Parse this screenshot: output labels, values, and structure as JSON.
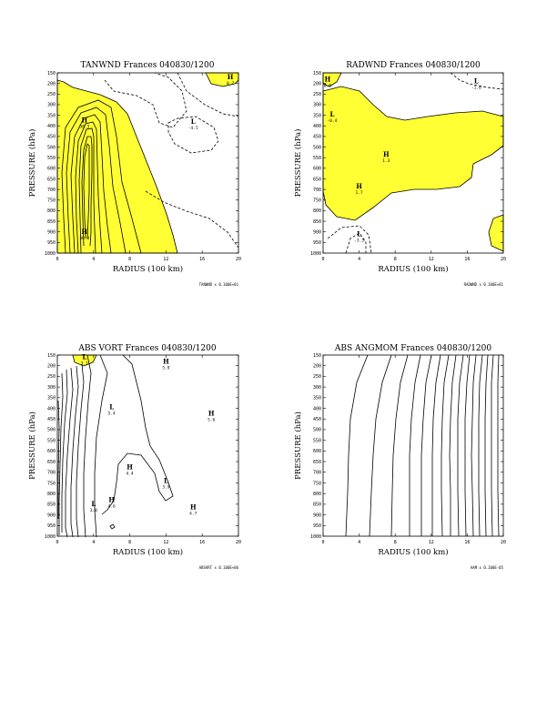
{
  "colors": {
    "positive_fill": "#ffff33",
    "line": "#000000"
  },
  "chart_data": [
    {
      "type": "contour",
      "title": "TANWND Frances 040830/1200",
      "xlabel": "RADIUS (100 km)",
      "ylabel": "PRESSURE (hPa)",
      "xlim": [
        0,
        20
      ],
      "ylim": [
        1000,
        150
      ],
      "grid": false,
      "x_ticks": [
        "0",
        "4",
        "8",
        "12",
        "16",
        "20"
      ],
      "y_ticks": [
        "150",
        "200",
        "250",
        "300",
        "350",
        "400",
        "450",
        "500",
        "550",
        "600",
        "650",
        "700",
        "750",
        "800",
        "850",
        "900",
        "950",
        "1000"
      ],
      "labels": [
        {
          "kind": "H",
          "value": "0.7",
          "r": 19.1,
          "p": 180
        },
        {
          "kind": "H",
          "value": "38.3",
          "r": 3.0,
          "p": 385
        },
        {
          "kind": "L",
          "value": "-4.5",
          "r": 15.0,
          "p": 390
        },
        {
          "kind": "H",
          "value": "38.8",
          "r": 3.0,
          "p": 910
        }
      ],
      "footer": "TANWND x  0.100E+01"
    },
    {
      "type": "contour",
      "title": "RADWND Frances 040830/1200",
      "xlabel": "RADIUS (100 km)",
      "ylabel": "PRESSURE (hPa)",
      "xlim": [
        0,
        20
      ],
      "ylim": [
        1000,
        150
      ],
      "grid": false,
      "x_ticks": [
        "0",
        "4",
        "8",
        "12",
        "16",
        "20"
      ],
      "y_ticks": [
        "150",
        "200",
        "250",
        "300",
        "350",
        "400",
        "450",
        "500",
        "550",
        "600",
        "650",
        "700",
        "750",
        "800",
        "850",
        "900",
        "950",
        "1000"
      ],
      "labels": [
        {
          "kind": "H",
          "value": "0.0",
          "r": 0.5,
          "p": 190
        },
        {
          "kind": "L",
          "value": "-1.8",
          "r": 17.0,
          "p": 200
        },
        {
          "kind": "L",
          "value": "-0.4",
          "r": 1.0,
          "p": 355
        },
        {
          "kind": "H",
          "value": "1.3",
          "r": 7.0,
          "p": 545
        },
        {
          "kind": "H",
          "value": "1.7",
          "r": 4.0,
          "p": 695
        },
        {
          "kind": "L",
          "value": "-3.3",
          "r": 4.0,
          "p": 920
        }
      ],
      "footer": "RADWND x  0.100E+01"
    },
    {
      "type": "contour",
      "title": "ABS VORT Frances 040830/1200",
      "xlabel": "RADIUS (100 km)",
      "ylabel": "PRESSURE (hPa)",
      "xlim": [
        0,
        20
      ],
      "ylim": [
        1000,
        150
      ],
      "grid": false,
      "x_ticks": [
        "0",
        "4",
        "8",
        "12",
        "16",
        "20"
      ],
      "y_ticks": [
        "150",
        "200",
        "250",
        "300",
        "350",
        "400",
        "450",
        "500",
        "550",
        "600",
        "650",
        "700",
        "750",
        "800",
        "850",
        "900",
        "950",
        "1000"
      ],
      "labels": [
        {
          "kind": "L",
          "value": "3.1",
          "r": 3.0,
          "p": 170
        },
        {
          "kind": "H",
          "value": "5.9",
          "r": 12.0,
          "p": 190
        },
        {
          "kind": "L",
          "value": "5.4",
          "r": 6.0,
          "p": 405
        },
        {
          "kind": "H",
          "value": "5.6",
          "r": 17.0,
          "p": 435
        },
        {
          "kind": "H",
          "value": "4.4",
          "r": 8.0,
          "p": 685
        },
        {
          "kind": "L",
          "value": "3.9",
          "r": 12.0,
          "p": 750
        },
        {
          "kind": "L",
          "value": "3.8",
          "r": 4.0,
          "p": 860
        },
        {
          "kind": "H",
          "value": "4.6",
          "r": 6.0,
          "p": 840
        },
        {
          "kind": "H",
          "value": "4.7",
          "r": 15.0,
          "p": 875
        }
      ],
      "footer": "ABSVRT x  0.100E+06"
    },
    {
      "type": "contour",
      "title": "ABS ANGMOM Frances 040830/1200",
      "xlabel": "RADIUS (100 km)",
      "ylabel": "PRESSURE (hPa)",
      "xlim": [
        0,
        20
      ],
      "ylim": [
        1000,
        150
      ],
      "grid": false,
      "x_ticks": [
        "0",
        "4",
        "8",
        "12",
        "16",
        "20"
      ],
      "y_ticks": [
        "150",
        "200",
        "250",
        "300",
        "350",
        "400",
        "450",
        "500",
        "550",
        "600",
        "650",
        "700",
        "750",
        "800",
        "850",
        "900",
        "950",
        "1000"
      ],
      "labels": [],
      "footer": "AAM    x  0.100E-05"
    }
  ]
}
